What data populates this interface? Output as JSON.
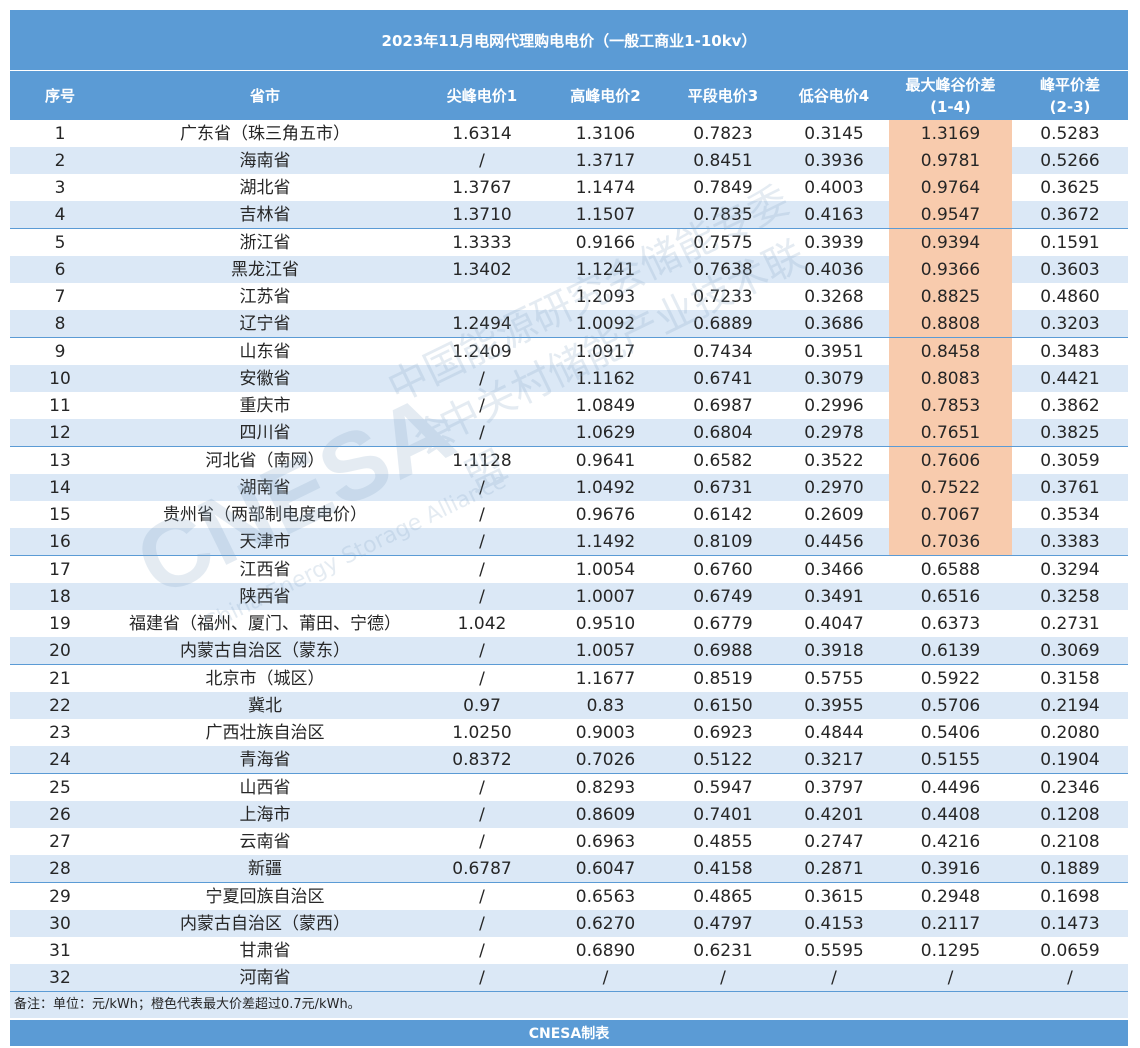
{
  "title": "2023年11月电网代理购电电价（一般工商业1-10kv）",
  "headers": {
    "seq": "序号",
    "province": "省市",
    "c1": "尖峰电价1",
    "c2": "高峰电价2",
    "c3": "平段电价3",
    "c4": "低谷电价4",
    "c5_l1": "最大峰谷价差",
    "c5_l2": "(1-4)",
    "c6_l1": "峰平价差",
    "c6_l2": "(2-3)"
  },
  "rows": [
    [
      "1",
      "广东省（珠三角五市）",
      "1.6314",
      "1.3106",
      "0.7823",
      "0.3145",
      "1.3169",
      "0.5283"
    ],
    [
      "2",
      "海南省",
      "/",
      "1.3717",
      "0.8451",
      "0.3936",
      "0.9781",
      "0.5266"
    ],
    [
      "3",
      "湖北省",
      "1.3767",
      "1.1474",
      "0.7849",
      "0.4003",
      "0.9764",
      "0.3625"
    ],
    [
      "4",
      "吉林省",
      "1.3710",
      "1.1507",
      "0.7835",
      "0.4163",
      "0.9547",
      "0.3672"
    ],
    [
      "5",
      "浙江省",
      "1.3333",
      "0.9166",
      "0.7575",
      "0.3939",
      "0.9394",
      "0.1591"
    ],
    [
      "6",
      "黑龙江省",
      "1.3402",
      "1.1241",
      "0.7638",
      "0.4036",
      "0.9366",
      "0.3603"
    ],
    [
      "7",
      "江苏省",
      "",
      "1.2093",
      "0.7233",
      "0.3268",
      "0.8825",
      "0.4860"
    ],
    [
      "8",
      "辽宁省",
      "1.2494",
      "1.0092",
      "0.6889",
      "0.3686",
      "0.8808",
      "0.3203"
    ],
    [
      "9",
      "山东省",
      "1.2409",
      "1.0917",
      "0.7434",
      "0.3951",
      "0.8458",
      "0.3483"
    ],
    [
      "10",
      "安徽省",
      "/",
      "1.1162",
      "0.6741",
      "0.3079",
      "0.8083",
      "0.4421"
    ],
    [
      "11",
      "重庆市",
      "/",
      "1.0849",
      "0.6987",
      "0.2996",
      "0.7853",
      "0.3862"
    ],
    [
      "12",
      "四川省",
      "/",
      "1.0629",
      "0.6804",
      "0.2978",
      "0.7651",
      "0.3825"
    ],
    [
      "13",
      "河北省（南网）",
      "1.1128",
      "0.9641",
      "0.6582",
      "0.3522",
      "0.7606",
      "0.3059"
    ],
    [
      "14",
      "湖南省",
      "/",
      "1.0492",
      "0.6731",
      "0.2970",
      "0.7522",
      "0.3761"
    ],
    [
      "15",
      "贵州省（两部制电度电价）",
      "/",
      "0.9676",
      "0.6142",
      "0.2609",
      "0.7067",
      "0.3534"
    ],
    [
      "16",
      "天津市",
      "/",
      "1.1492",
      "0.8109",
      "0.4456",
      "0.7036",
      "0.3383"
    ],
    [
      "17",
      "江西省",
      "/",
      "1.0054",
      "0.6760",
      "0.3466",
      "0.6588",
      "0.3294"
    ],
    [
      "18",
      "陕西省",
      "/",
      "1.0007",
      "0.6749",
      "0.3491",
      "0.6516",
      "0.3258"
    ],
    [
      "19",
      "福建省（福州、厦门、莆田、宁德）",
      "1.042",
      "0.9510",
      "0.6779",
      "0.4047",
      "0.6373",
      "0.2731"
    ],
    [
      "20",
      "内蒙古自治区（蒙东）",
      "/",
      "1.0057",
      "0.6988",
      "0.3918",
      "0.6139",
      "0.3069"
    ],
    [
      "21",
      "北京市（城区）",
      "/",
      "1.1677",
      "0.8519",
      "0.5755",
      "0.5922",
      "0.3158"
    ],
    [
      "22",
      "冀北",
      "0.97",
      "0.83",
      "0.6150",
      "0.3955",
      "0.5706",
      "0.2194"
    ],
    [
      "23",
      "广西壮族自治区",
      "1.0250",
      "0.9003",
      "0.6923",
      "0.4844",
      "0.5406",
      "0.2080"
    ],
    [
      "24",
      "青海省",
      "0.8372",
      "0.7026",
      "0.5122",
      "0.3217",
      "0.5155",
      "0.1904"
    ],
    [
      "25",
      "山西省",
      "/",
      "0.8293",
      "0.5947",
      "0.3797",
      "0.4496",
      "0.2346"
    ],
    [
      "26",
      "上海市",
      "/",
      "0.8609",
      "0.7401",
      "0.4201",
      "0.4408",
      "0.1208"
    ],
    [
      "27",
      "云南省",
      "/",
      "0.6963",
      "0.4855",
      "0.2747",
      "0.4216",
      "0.2108"
    ],
    [
      "28",
      "新疆",
      "0.6787",
      "0.6047",
      "0.4158",
      "0.2871",
      "0.3916",
      "0.1889"
    ],
    [
      "29",
      "宁夏回族自治区",
      "/",
      "0.6563",
      "0.4865",
      "0.3615",
      "0.2948",
      "0.1698"
    ],
    [
      "30",
      "内蒙古自治区（蒙西）",
      "/",
      "0.6270",
      "0.4797",
      "0.4153",
      "0.2117",
      "0.1473"
    ],
    [
      "31",
      "甘肃省",
      "/",
      "0.6890",
      "0.6231",
      "0.5595",
      "0.1295",
      "0.0659"
    ],
    [
      "32",
      "河南省",
      "/",
      "/",
      "/",
      "/",
      "/",
      "/"
    ]
  ],
  "highlight_count": 16,
  "note": "备注：单位：元/kWh；橙色代表最大价差超过0.7元/kWh。",
  "footer": "CNESA制表",
  "watermark": {
    "logo": "CNESA",
    "line1": "中国能源研究会储能专委会",
    "line2": "中关村储能产业技术联盟",
    "english": "China Energy Storage Alliance"
  },
  "colors": {
    "header": "#5b9bd5",
    "stripe": "#dbe8f6",
    "highlight": "#f8cbad"
  }
}
